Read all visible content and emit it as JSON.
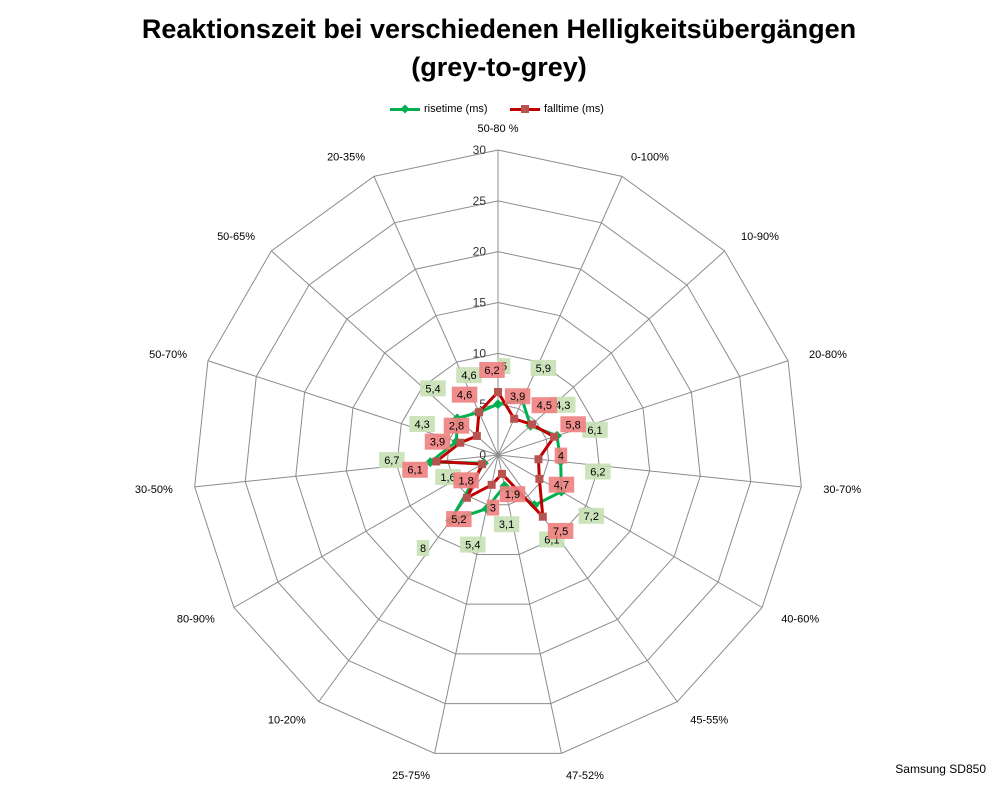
{
  "title_line1": "Reaktionszeit bei verschiedenen Helligkeitsübergängen",
  "title_line2": "(grey-to-grey)",
  "footnote": "Samsung SD850",
  "chart_data": {
    "type": "radar",
    "categories": [
      "50-80 %",
      "0-100%",
      "10-90%",
      "20-80%",
      "30-70%",
      "40-60%",
      "45-55%",
      "47-52%",
      "25-75%",
      "10-20%",
      "80-90%",
      "30-50%",
      "50-70%",
      "50-65%",
      "20-35%"
    ],
    "rlim": [
      0,
      30
    ],
    "ticks": [
      "0",
      "5",
      "10",
      "15",
      "20",
      "25",
      "30"
    ],
    "series": [
      {
        "name": "risetime (ms)",
        "color": "#00B050",
        "label_bg": "#C6E0B4",
        "values": [
          5,
          5.9,
          4.3,
          6.1,
          6.2,
          7.2,
          6.1,
          3.1,
          5.4,
          8,
          1.6,
          6.7,
          4.3,
          5.4,
          4.6
        ],
        "labels": [
          "5",
          "5,9",
          "4,3",
          "6,1",
          "6,2",
          "7,2",
          "6,1",
          "3,1",
          "5,4",
          "8",
          "1,6",
          "6,7",
          "4,3",
          "5,4",
          "4,6"
        ]
      },
      {
        "name": "falltime (ms)",
        "color": "#C00000",
        "label_bg": "#F08080",
        "values": [
          6.2,
          3.9,
          4.5,
          5.8,
          4,
          4.7,
          7.5,
          1.9,
          3,
          5.2,
          1.8,
          6.1,
          3.9,
          2.8,
          4.6
        ],
        "labels": [
          "6,2",
          "3,9",
          "4,5",
          "5,8",
          "4",
          "4,7",
          "7,5",
          "1,9",
          "3",
          "5,2",
          "1,8",
          "6,1",
          "3,9",
          "2,8",
          "4,6"
        ]
      }
    ]
  }
}
